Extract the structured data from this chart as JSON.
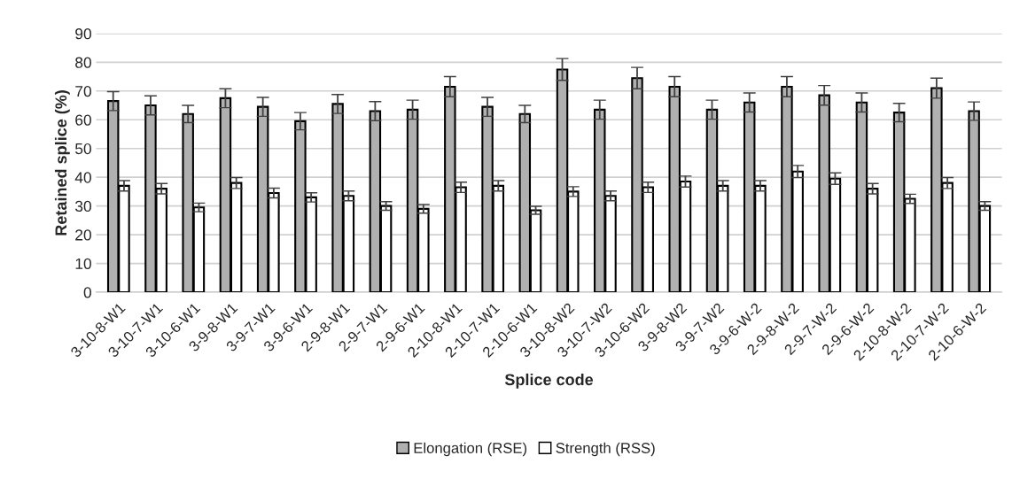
{
  "chart_data": {
    "type": "bar",
    "xlabel": "Splice code",
    "ylabel": "Retained splice (%)",
    "categories": [
      "3-10-8-W1",
      "3-10-7-W1",
      "3-10-6-W1",
      "3-9-8-W1",
      "3-9-7-W1",
      "3-9-6-W1",
      "2-9-8-W1",
      "2-9-7-W1",
      "2-9-6-W1",
      "2-10-8-W1",
      "2-10-7-W1",
      "2-10-6-W1",
      "3-10-8-W2",
      "3-10-7-W2",
      "3-10-6-W2",
      "3-9-8-W2",
      "3-9-7-W2",
      "3-9-6-W-2",
      "2-9-8-W-2",
      "2-9-7-W-2",
      "2-9-6-W-2",
      "2-10-8-W-2",
      "2-10-7-W-2",
      "2-10-6-W-2"
    ],
    "series": [
      {
        "name": "Elongation (RSE)",
        "color": "#b0b0b0",
        "values": [
          66.5,
          65,
          62,
          67.5,
          64.5,
          59.5,
          65.5,
          63,
          63.5,
          71.5,
          64.5,
          62,
          77.5,
          63.5,
          74.5,
          71.5,
          63.5,
          66,
          71.5,
          68.5,
          66,
          62.5,
          71,
          63
        ],
        "errors": [
          3.3,
          3.3,
          3,
          3.3,
          3.3,
          3,
          3.3,
          3.3,
          3.3,
          3.5,
          3.3,
          3,
          3.8,
          3.3,
          3.7,
          3.5,
          3.3,
          3.3,
          3.5,
          3.4,
          3.3,
          3.2,
          3.5,
          3.2
        ]
      },
      {
        "name": "Strength (RSS)",
        "color": "#ffffff",
        "values": [
          37,
          36,
          29.5,
          38,
          34.5,
          33,
          33.5,
          30,
          29,
          36.5,
          37,
          28.5,
          35,
          33.5,
          36.5,
          38.5,
          37,
          37,
          42,
          39.5,
          36,
          32.5,
          38,
          30
        ],
        "errors": [
          1.8,
          1.8,
          1.5,
          1.9,
          1.7,
          1.6,
          1.7,
          1.5,
          1.5,
          1.8,
          1.8,
          1.4,
          1.7,
          1.7,
          1.8,
          1.9,
          1.8,
          1.8,
          2.1,
          2,
          1.8,
          1.6,
          1.9,
          1.5
        ]
      }
    ],
    "ylim": [
      0,
      90
    ],
    "yticks": [
      0,
      10,
      20,
      30,
      40,
      50,
      60,
      70,
      80,
      90
    ],
    "grid": "y",
    "legend": "bottom"
  }
}
